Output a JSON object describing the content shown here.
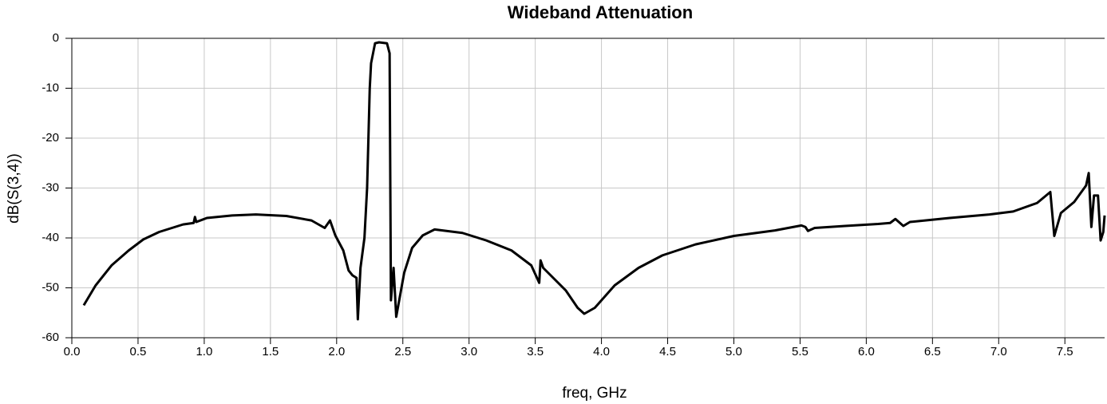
{
  "chart_data": {
    "type": "line",
    "title": "Wideband Attenuation",
    "x_label": "freq, GHz",
    "y_label": "dB(S(3,4))",
    "color": "#000000",
    "grid": true,
    "xlim": [
      0,
      7.8
    ],
    "ylim": [
      -60,
      0
    ],
    "xticks": [
      {
        "value": 0,
        "label": "0.0"
      },
      0.5,
      {
        "value": 1,
        "label": "1.0"
      },
      1.5,
      {
        "value": 2,
        "label": "2.0"
      },
      2.5,
      {
        "value": 3,
        "label": "3.0"
      },
      3.5,
      {
        "value": 4,
        "label": "4.0"
      },
      4.5,
      {
        "value": 5,
        "label": "5.0"
      },
      5.5,
      {
        "value": 6,
        "label": "6.0"
      },
      6.5,
      {
        "value": 7,
        "label": "7.0"
      },
      7.5
    ],
    "yticks": [
      0,
      -10,
      -20,
      -30,
      -40,
      -50,
      -60
    ],
    "x": [
      0.09,
      0.18,
      0.3,
      0.43,
      0.54,
      0.66,
      0.84,
      0.92,
      0.93,
      0.94,
      1.02,
      1.21,
      1.39,
      1.62,
      1.81,
      1.91,
      1.95,
      1.99,
      2.05,
      2.09,
      2.12,
      2.15,
      2.16,
      2.18,
      2.21,
      2.23,
      2.25,
      2.26,
      2.29,
      2.32,
      2.38,
      2.4,
      2.41,
      2.43,
      2.45,
      2.51,
      2.57,
      2.65,
      2.74,
      2.95,
      3.13,
      3.32,
      3.47,
      3.53,
      3.54,
      3.56,
      3.73,
      3.82,
      3.87,
      3.95,
      4.1,
      4.28,
      4.46,
      4.71,
      5.0,
      5.31,
      5.51,
      5.54,
      5.56,
      5.61,
      5.84,
      6.09,
      6.18,
      6.22,
      6.28,
      6.33,
      6.63,
      6.93,
      7.11,
      7.29,
      7.39,
      7.42,
      7.47,
      7.57,
      7.66,
      7.68,
      7.7,
      7.72,
      7.75,
      7.77,
      7.79,
      7.8
    ],
    "values": [
      -53.5,
      -49.5,
      -45.5,
      -42.5,
      -40.3,
      -38.8,
      -37.3,
      -37,
      -35.8,
      -36.8,
      -36,
      -35.5,
      -35.3,
      -35.6,
      -36.5,
      -38,
      -36.5,
      -39.5,
      -42.5,
      -46.5,
      -47.5,
      -48,
      -56.3,
      -46,
      -40,
      -30,
      -10,
      -5,
      -1,
      -0.8,
      -1,
      -3,
      -52.5,
      -46,
      -55.8,
      -47,
      -42,
      -39.5,
      -38.3,
      -39,
      -40.5,
      -42.5,
      -45.5,
      -49,
      -44.5,
      -46,
      -50.5,
      -54,
      -55.2,
      -54,
      -49.5,
      -46,
      -43.5,
      -41.3,
      -39.6,
      -38.5,
      -37.5,
      -37.8,
      -38.6,
      -38,
      -37.6,
      -37.2,
      -37,
      -36.2,
      -37.6,
      -36.8,
      -36,
      -35.3,
      -34.7,
      -33,
      -30.8,
      -39.6,
      -35,
      -32.8,
      -29.5,
      -27,
      -37.8,
      -31.5,
      -31.5,
      -40.5,
      -38.8,
      -35.5
    ]
  }
}
